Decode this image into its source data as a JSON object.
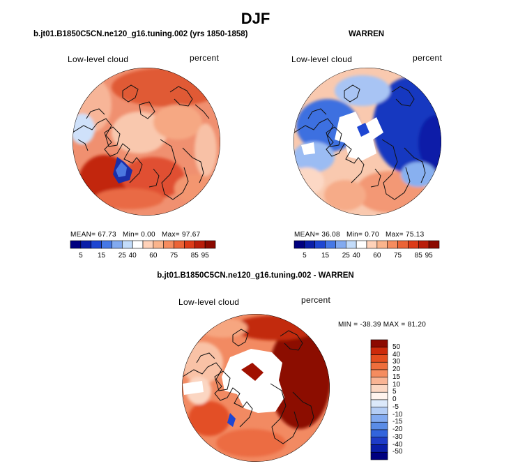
{
  "figure": {
    "title": "DJF"
  },
  "colors": {
    "abs_scale": [
      "#00007f",
      "#0a1ea8",
      "#1e46d2",
      "#4678e6",
      "#82aaf0",
      "#c3dcfa",
      "#ffffff",
      "#ffd2b9",
      "#fab48c",
      "#f58c5f",
      "#eb6437",
      "#dc3c19",
      "#b91e0a",
      "#8c0a00"
    ],
    "diff_scale": [
      "#00007f",
      "#0a1ea8",
      "#1e3cc8",
      "#3264dc",
      "#5a8ce6",
      "#82aaf0",
      "#b4cdf5",
      "#dce9fa",
      "#fff4ee",
      "#fbd7c3",
      "#f9b494",
      "#f58c5f",
      "#ee6e3c",
      "#e44e1e",
      "#cc2a0a",
      "#8c0a00"
    ],
    "land_outline": "#111111"
  },
  "panels": {
    "left": {
      "title": "b.jt01.B1850C5CN.ne120_g16.tuning.002 (yrs 1850-1858)",
      "variable": "Low-level cloud",
      "units": "percent",
      "stats": {
        "mean_label": "MEAN=",
        "mean": "67.73",
        "min_label": "Min=",
        "min": "0.00",
        "max_label": "Max=",
        "max": "97.67"
      }
    },
    "right": {
      "title": "WARREN",
      "variable": "Low-level cloud",
      "units": "percent",
      "stats": {
        "mean_label": "MEAN=",
        "mean": "36.08",
        "min_label": "Min=",
        "min": "0.70",
        "max_label": "Max=",
        "max": "75.13"
      }
    },
    "bottom": {
      "title": "b.jt01.B1850C5CN.ne120_g16.tuning.002 - WARREN",
      "variable": "Low-level cloud",
      "units": "percent",
      "stats_text": "MIN = -38.39 MAX =  81.20"
    }
  },
  "colorbars": {
    "abs_ticks": [
      "5",
      "15",
      "25",
      "40",
      "60",
      "75",
      "85",
      "95"
    ],
    "diff_ticks": [
      "50",
      "40",
      "30",
      "20",
      "15",
      "10",
      "5",
      "0",
      "-5",
      "-10",
      "-15",
      "-20",
      "-30",
      "-40",
      "-50"
    ]
  },
  "chart_data": [
    {
      "type": "heatmap",
      "projection": "north-polar-stereographic",
      "title": "b.jt01.B1850C5CN.ne120_g16.tuning.002 (yrs 1850-1858)",
      "field": "Low-level cloud",
      "units": "percent",
      "mean": 67.73,
      "min": 0.0,
      "max": 97.67,
      "contour_levels": [
        5,
        10,
        15,
        20,
        25,
        30,
        40,
        50,
        60,
        70,
        75,
        80,
        85,
        90,
        95
      ],
      "colorbar_ticks": [
        5,
        15,
        25,
        40,
        60,
        75,
        85,
        95
      ]
    },
    {
      "type": "heatmap",
      "projection": "north-polar-stereographic",
      "title": "WARREN",
      "field": "Low-level cloud",
      "units": "percent",
      "mean": 36.08,
      "min": 0.7,
      "max": 75.13,
      "contour_levels": [
        5,
        10,
        15,
        20,
        25,
        30,
        40,
        50,
        60,
        70,
        75,
        80,
        85,
        90,
        95
      ],
      "colorbar_ticks": [
        5,
        15,
        25,
        40,
        60,
        75,
        85,
        95
      ]
    },
    {
      "type": "heatmap",
      "projection": "north-polar-stereographic",
      "title": "b.jt01.B1850C5CN.ne120_g16.tuning.002 - WARREN",
      "field": "Low-level cloud",
      "units": "percent",
      "min": -38.39,
      "max": 81.2,
      "contour_levels": [
        -50,
        -40,
        -30,
        -20,
        -15,
        -10,
        -5,
        0,
        5,
        10,
        15,
        20,
        30,
        40,
        50
      ],
      "colorbar_ticks": [
        50,
        40,
        30,
        20,
        15,
        10,
        5,
        0,
        -5,
        -10,
        -15,
        -20,
        -30,
        -40,
        -50
      ]
    }
  ]
}
